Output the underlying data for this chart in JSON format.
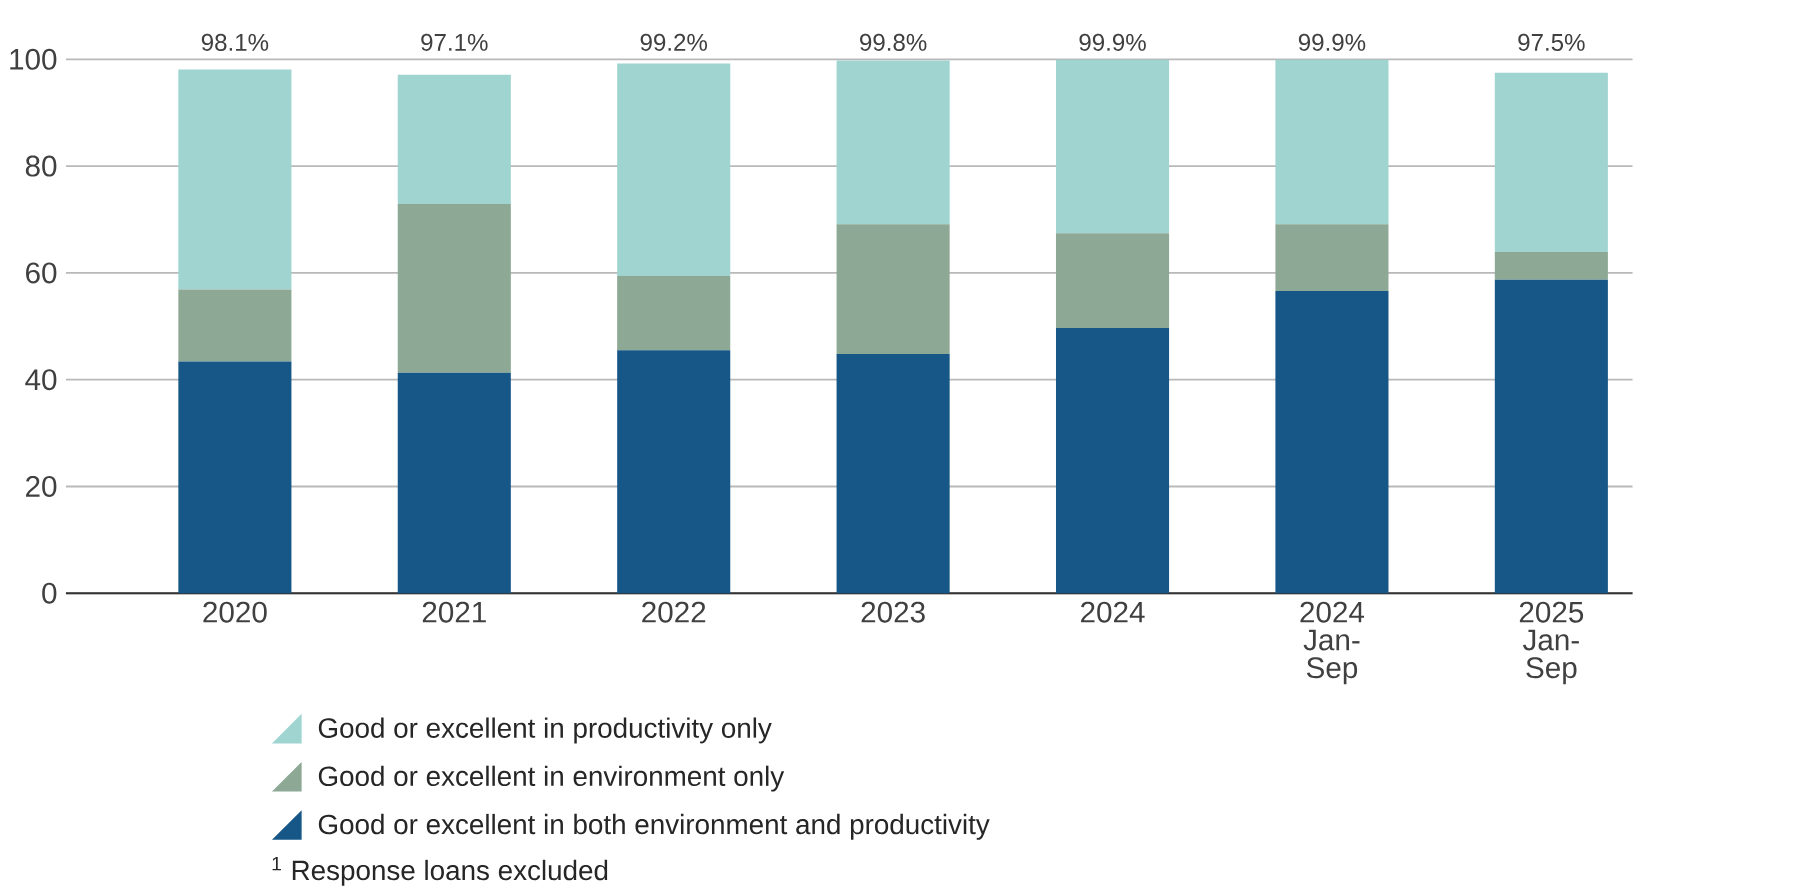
{
  "chart_data": {
    "type": "bar",
    "stacked": true,
    "categories": [
      "2020",
      "2021",
      "2022",
      "2023",
      "2024",
      "2024 Jan-Sep",
      "2025 Jan-Sep"
    ],
    "series": [
      {
        "name": "Good or excellent in both environment and productivity",
        "color": "#175787",
        "values": [
          43.4,
          41.3,
          45.5,
          44.8,
          49.7,
          56.6,
          58.7
        ]
      },
      {
        "name": "Good or excellent in environment only",
        "color": "#8da895",
        "values": [
          13.5,
          31.6,
          13.9,
          24.3,
          17.7,
          12.5,
          5.2
        ]
      },
      {
        "name": "Good or excellent in productivity only",
        "color": "#9fd4d1",
        "values": [
          41.2,
          24.2,
          39.8,
          30.7,
          32.5,
          30.8,
          33.6
        ]
      }
    ],
    "totals": [
      "98.1%",
      "97.1%",
      "99.2%",
      "99.8%",
      "99.9%",
      "99.9%",
      "97.5%"
    ],
    "ylim": [
      0,
      100
    ],
    "yticks": [
      0,
      20,
      40,
      60,
      80,
      100
    ],
    "grid": "y",
    "legend": "bottom left",
    "annotations": [
      "$^{1}$ Response loans excluded"
    ]
  }
}
